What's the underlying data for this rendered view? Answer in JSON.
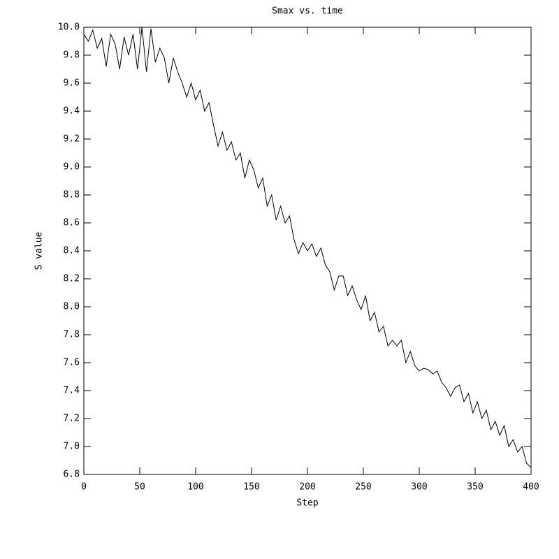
{
  "chart_data": {
    "type": "line",
    "title": "Smax vs. time",
    "xlabel": "Step",
    "ylabel": "S value",
    "x": [
      0,
      4,
      8,
      12,
      16,
      20,
      24,
      28,
      32,
      36,
      40,
      44,
      48,
      52,
      56,
      60,
      64,
      68,
      72,
      76,
      80,
      84,
      88,
      92,
      96,
      100,
      104,
      108,
      112,
      116,
      120,
      124,
      128,
      132,
      136,
      140,
      144,
      148,
      152,
      156,
      160,
      164,
      168,
      172,
      176,
      180,
      184,
      188,
      192,
      196,
      200,
      204,
      208,
      212,
      216,
      220,
      224,
      228,
      232,
      236,
      240,
      244,
      248,
      252,
      256,
      260,
      264,
      268,
      272,
      276,
      280,
      284,
      288,
      292,
      296,
      300,
      304,
      308,
      312,
      316,
      320,
      324,
      328,
      332,
      336,
      340,
      344,
      348,
      352,
      356,
      360,
      364,
      368,
      372,
      376,
      380,
      384,
      388,
      392,
      396,
      400
    ],
    "series": [
      {
        "color": "#000000",
        "values": [
          9.95,
          9.9,
          9.98,
          9.85,
          9.92,
          9.72,
          9.95,
          9.88,
          9.7,
          9.93,
          9.8,
          9.95,
          9.7,
          10.0,
          9.68,
          9.99,
          9.75,
          9.85,
          9.78,
          9.6,
          9.78,
          9.68,
          9.6,
          9.5,
          9.6,
          9.48,
          9.55,
          9.4,
          9.46,
          9.3,
          9.15,
          9.25,
          9.12,
          9.18,
          9.05,
          9.1,
          8.92,
          9.05,
          8.98,
          8.85,
          8.92,
          8.72,
          8.8,
          8.62,
          8.72,
          8.6,
          8.65,
          8.48,
          8.38,
          8.46,
          8.4,
          8.45,
          8.36,
          8.42,
          8.3,
          8.25,
          8.12,
          8.22,
          8.22,
          8.08,
          8.15,
          8.05,
          7.98,
          8.08,
          7.9,
          7.96,
          7.82,
          7.86,
          7.72,
          7.76,
          7.72,
          7.76,
          7.6,
          7.68,
          7.58,
          7.54,
          7.56,
          7.55,
          7.52,
          7.54,
          7.46,
          7.42,
          7.36,
          7.42,
          7.44,
          7.32,
          7.38,
          7.24,
          7.32,
          7.2,
          7.26,
          7.12,
          7.18,
          7.08,
          7.15,
          7.0,
          7.05,
          6.96,
          7.0,
          6.88,
          6.85
        ]
      }
    ],
    "xlim": [
      0,
      400
    ],
    "xticks": [
      0,
      50,
      100,
      150,
      200,
      250,
      300,
      350,
      400
    ],
    "ylim": [
      6.8,
      10.0
    ],
    "yticks": [
      6.8,
      {
        "value": 7,
        "label": "7.0"
      },
      7.2,
      7.4,
      7.6,
      7.8,
      {
        "value": 8,
        "label": "8.0"
      },
      8.2,
      8.4,
      8.6,
      8.8,
      {
        "value": 9,
        "label": "9.0"
      },
      9.2,
      9.4,
      9.6,
      9.8,
      {
        "value": 10,
        "label": "10.0"
      }
    ]
  }
}
